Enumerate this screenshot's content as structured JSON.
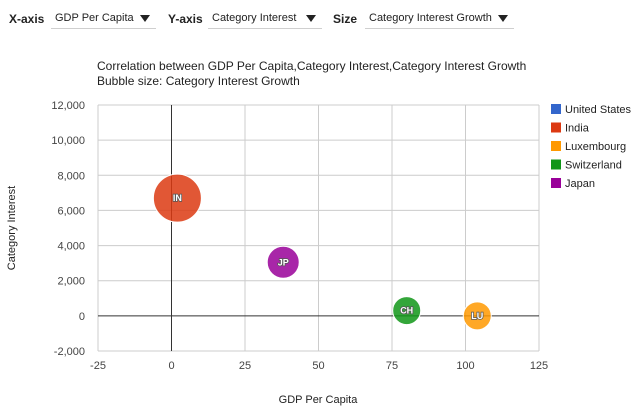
{
  "controls": {
    "x_axis": {
      "label": "X-axis",
      "value": "GDP Per Capita"
    },
    "y_axis": {
      "label": "Y-axis",
      "value": "Category Interest"
    },
    "size": {
      "label": "Size",
      "value": "Category Interest Growth"
    }
  },
  "chart_data": {
    "type": "scatter",
    "subtype": "bubble",
    "title": "Correlation between GDP Per Capita,Category Interest,Category Interest Growth",
    "subtitle": "Bubble size: Category Interest Growth",
    "xlabel": "GDP Per Capita",
    "ylabel": "Category Interest",
    "xlim": [
      -25,
      125
    ],
    "ylim": [
      -2000,
      12000
    ],
    "xticks": [
      -25,
      0,
      25,
      50,
      75,
      100,
      125
    ],
    "yticks": [
      -2000,
      0,
      2000,
      4000,
      6000,
      8000,
      10000,
      12000
    ],
    "ytick_labels": [
      "-2,000",
      "0",
      "2,000",
      "4,000",
      "6,000",
      "8,000",
      "10,000",
      "12,000"
    ],
    "grid": true,
    "legend_position": "right",
    "series": [
      {
        "name": "United States",
        "color": "#3366cc",
        "points": []
      },
      {
        "name": "India",
        "color": "#dc3912",
        "points": [
          {
            "label": "IN",
            "x": 2,
            "y": 6700,
            "size": 1.0
          }
        ]
      },
      {
        "name": "Luxembourg",
        "color": "#ff9900",
        "points": [
          {
            "label": "LU",
            "x": 104,
            "y": 0,
            "size": 0.5
          }
        ]
      },
      {
        "name": "Switzerland",
        "color": "#109618",
        "points": [
          {
            "label": "CH",
            "x": 80,
            "y": 300,
            "size": 0.5
          }
        ]
      },
      {
        "name": "Japan",
        "color": "#990099",
        "points": [
          {
            "label": "JP",
            "x": 38,
            "y": 3050,
            "size": 0.6
          }
        ]
      }
    ]
  }
}
